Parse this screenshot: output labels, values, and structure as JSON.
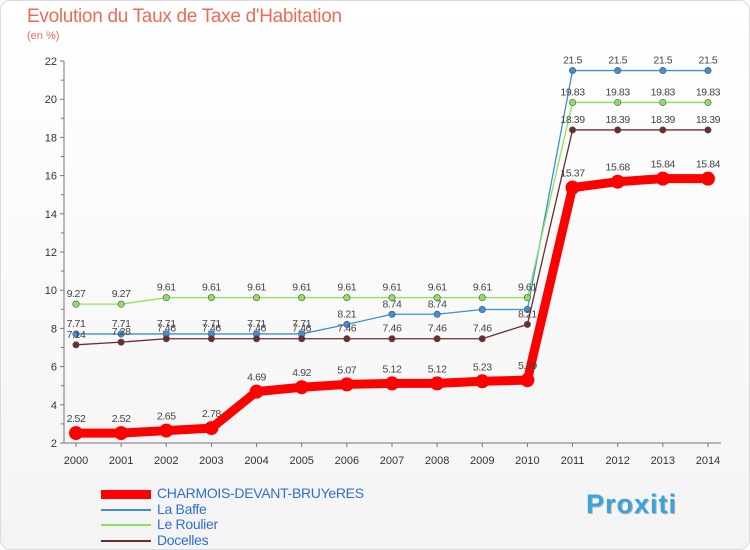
{
  "chart_data": {
    "type": "line",
    "title": "Evolution du Taux de Taxe d'Habitation",
    "ylabel": "(en %)",
    "xlabel": "",
    "x": [
      "2000",
      "2001",
      "2002",
      "2003",
      "2004",
      "2005",
      "2006",
      "2007",
      "2008",
      "2009",
      "2010",
      "2011",
      "2012",
      "2013",
      "2014"
    ],
    "ylim": [
      2,
      22
    ],
    "yticks": [
      2,
      4,
      6,
      8,
      10,
      12,
      14,
      16,
      18,
      20,
      22
    ],
    "grid": false,
    "legend_position": "bottom-left",
    "series": [
      {
        "name": "CHARMOIS-DEVANT-BRUYeRES",
        "color": "#ff0000",
        "highlight": true,
        "values": [
          2.52,
          2.52,
          2.65,
          2.78,
          4.69,
          4.92,
          5.07,
          5.12,
          5.12,
          5.23,
          5.29,
          15.37,
          15.68,
          15.84,
          15.84
        ]
      },
      {
        "name": "La Baffe",
        "color": "#3d8fd6",
        "highlight": false,
        "values": [
          7.71,
          7.71,
          7.71,
          7.71,
          7.71,
          7.71,
          8.21,
          8.74,
          8.74,
          8.99,
          8.99,
          21.5,
          21.5,
          21.5,
          21.5
        ]
      },
      {
        "name": "Le Roulier",
        "color": "#8fe05c",
        "highlight": false,
        "values": [
          9.27,
          9.27,
          9.61,
          9.61,
          9.61,
          9.61,
          9.61,
          9.61,
          9.61,
          9.61,
          9.61,
          19.83,
          19.83,
          19.83,
          19.83
        ]
      },
      {
        "name": "Docelles",
        "color": "#6e2c2c",
        "highlight": false,
        "values": [
          7.14,
          7.28,
          7.46,
          7.46,
          7.46,
          7.46,
          7.46,
          7.46,
          7.46,
          7.46,
          8.21,
          18.39,
          18.39,
          18.39,
          18.39
        ]
      }
    ],
    "point_labels": {
      "CHARMOIS-DEVANT-BRUYeRES": [
        "2.52",
        "2.52",
        "2.65",
        "2.78",
        "4.69",
        "4.92",
        "5.07",
        "5.12",
        "5.12",
        "5.23",
        "5.29",
        "15.37",
        "15.68",
        "15.84",
        "15.84"
      ],
      "La Baffe": [
        "7.71",
        "7.71",
        "7.71",
        "7.71",
        "7.71",
        "7.71",
        "8.21",
        "8.74",
        "8.74",
        "",
        "",
        "21.5",
        "21.5",
        "21.5",
        "21.5"
      ],
      "Le Roulier": [
        "9.27",
        "9.27",
        "9.61",
        "9.61",
        "9.61",
        "9.61",
        "9.61",
        "9.61",
        "9.61",
        "9.61",
        "9.61",
        "19.83",
        "19.83",
        "19.83",
        "19.83"
      ],
      "Docelles": [
        "7.14",
        "7.28",
        "7.46",
        "7.46",
        "7.46",
        "7.46",
        "7.46",
        "7.46",
        "7.46",
        "7.46",
        "8.21",
        "18.39",
        "18.39",
        "18.39",
        "18.39"
      ]
    }
  },
  "logo": {
    "text": "Proxiti"
  }
}
